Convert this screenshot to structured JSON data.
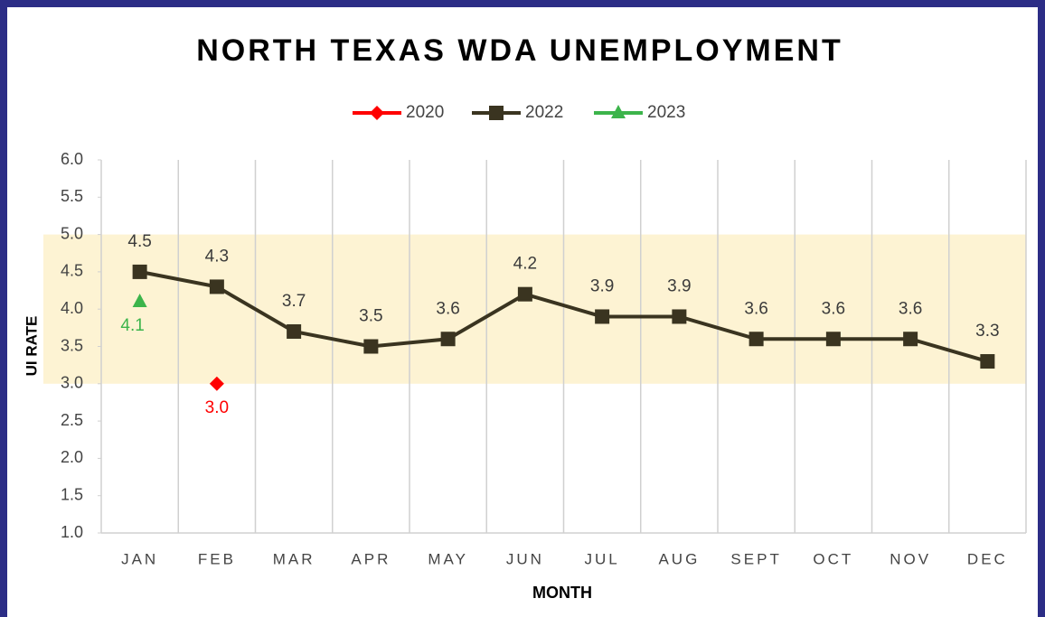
{
  "chart_data": {
    "type": "line",
    "title": "NORTH TEXAS WDA UNEMPLOYMENT",
    "x_label": "MONTH",
    "y_label": "UI RATE",
    "categories": [
      "JAN",
      "FEB",
      "MAR",
      "APR",
      "MAY",
      "JUN",
      "JUL",
      "AUG",
      "SEPT",
      "OCT",
      "NOV",
      "DEC"
    ],
    "series": [
      {
        "name": "2020",
        "color": "#ff0000",
        "marker": "diamond",
        "label_position": "below",
        "values": [
          null,
          3,
          null,
          null,
          null,
          null,
          null,
          null,
          null,
          null,
          null,
          null
        ],
        "value_labels": [
          null,
          "3.0",
          null,
          null,
          null,
          null,
          null,
          null,
          null,
          null,
          null,
          null
        ]
      },
      {
        "name": "2022",
        "color": "#3a3420",
        "marker": "square",
        "label_position": "above",
        "values": [
          4.5,
          4.3,
          3.7,
          3.5,
          3.6,
          4.2,
          3.9,
          3.9,
          3.6,
          3.6,
          3.6,
          3.3
        ]
      },
      {
        "name": "2023",
        "color": "#3cb44b",
        "marker": "triangle",
        "label_position": "below",
        "values": [
          4.1,
          null,
          null,
          null,
          null,
          null,
          null,
          null,
          null,
          null,
          null,
          null
        ]
      }
    ],
    "ylim": [
      1,
      6
    ],
    "yticks": [
      {
        "value": 1,
        "label": "1.0"
      },
      {
        "value": 1.5,
        "label": "1.5"
      },
      {
        "value": 2,
        "label": "2.0"
      },
      {
        "value": 2.5,
        "label": "2.5"
      },
      {
        "value": 3,
        "label": "3.0"
      },
      {
        "value": 3.5,
        "label": "3.5"
      },
      {
        "value": 4,
        "label": "4.0"
      },
      {
        "value": 4.5,
        "label": "4.5"
      },
      {
        "value": 5,
        "label": "5.0"
      },
      {
        "value": 5.5,
        "label": "5.5"
      },
      {
        "value": 6,
        "label": "6.0"
      }
    ],
    "highlight_band": [
      3,
      5
    ],
    "highlight_color": "#fdf3d3",
    "grid": "vertical",
    "legend": "top"
  }
}
